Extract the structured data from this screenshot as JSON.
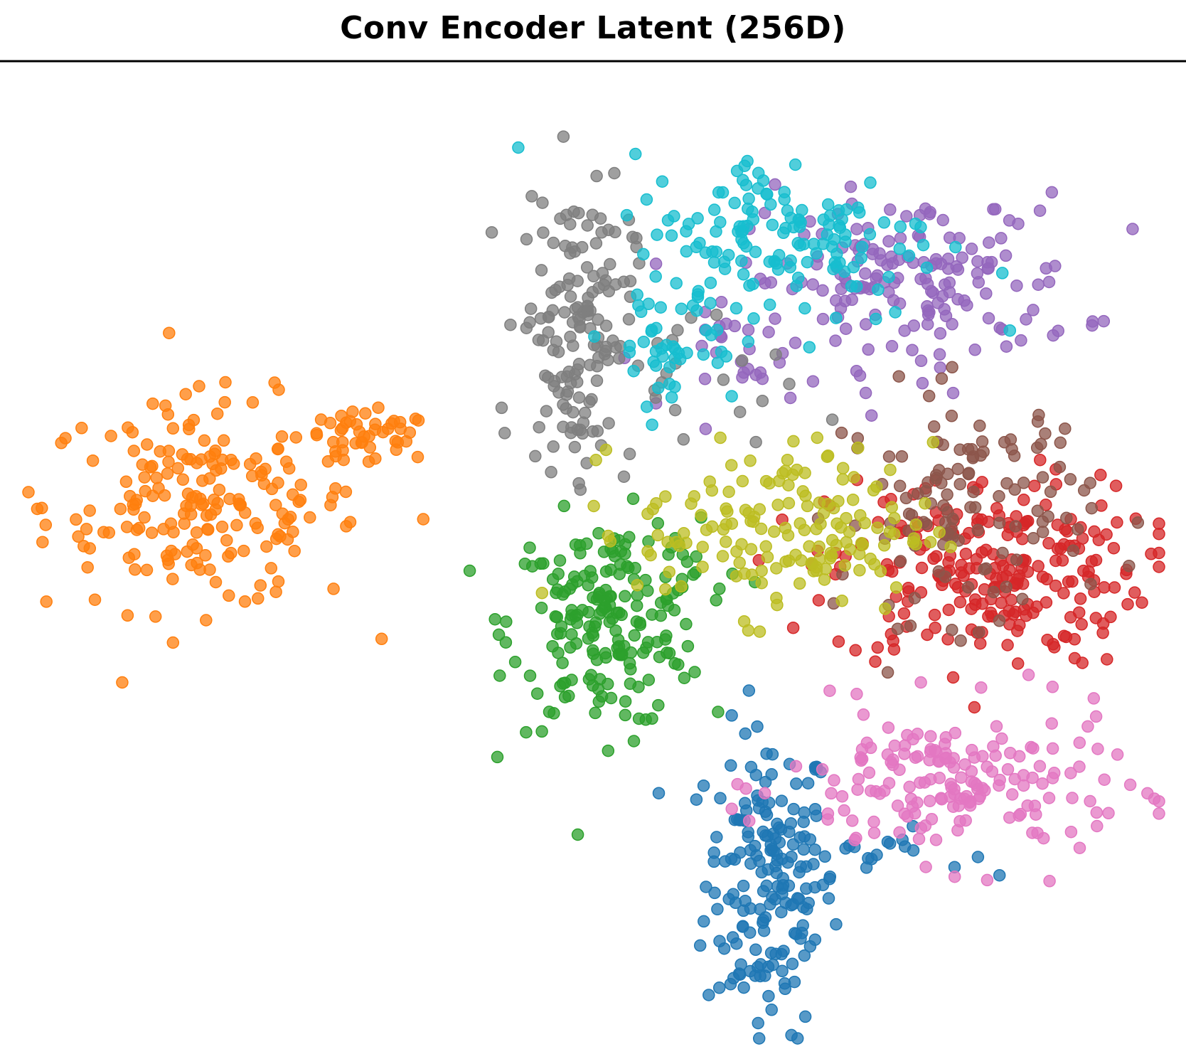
{
  "chart_data": {
    "type": "scatter",
    "title": "Conv Encoder Latent (256D)",
    "xlabel": "",
    "ylabel": "",
    "axes_visible": false,
    "grid": false,
    "legend": "none",
    "xlim": [
      0,
      100
    ],
    "ylim": [
      0,
      100
    ],
    "marker_alpha": 0.75,
    "series": [
      {
        "color": "#1f77b4",
        "clusters": [
          {
            "cx": 65.5,
            "cy": 16.5,
            "sx": 2.8,
            "sy": 8.0,
            "n": 180
          },
          {
            "cx": 75.0,
            "cy": 19.5,
            "sx": 4.0,
            "sy": 1.2,
            "n": 20
          }
        ]
      },
      {
        "color": "#ff7f0e",
        "clusters": [
          {
            "cx": 15.5,
            "cy": 56.0,
            "sx": 7.0,
            "sy": 5.5,
            "n": 200
          },
          {
            "cx": 30.0,
            "cy": 63.0,
            "sx": 3.0,
            "sy": 1.3,
            "n": 40
          }
        ]
      },
      {
        "color": "#2ca02c",
        "clusters": [
          {
            "cx": 51.0,
            "cy": 43.5,
            "sx": 4.2,
            "sy": 5.5,
            "n": 190
          },
          {
            "cx": 58.0,
            "cy": 50.0,
            "sx": 2.0,
            "sy": 2.0,
            "n": 14
          }
        ]
      },
      {
        "color": "#d62728",
        "clusters": [
          {
            "cx": 85.0,
            "cy": 49.0,
            "sx": 7.0,
            "sy": 5.0,
            "n": 240
          }
        ]
      },
      {
        "color": "#9467bd",
        "clusters": [
          {
            "cx": 78.0,
            "cy": 79.5,
            "sx": 7.5,
            "sy": 4.5,
            "n": 170
          },
          {
            "cx": 64.0,
            "cy": 71.0,
            "sx": 3.0,
            "sy": 2.5,
            "n": 25
          }
        ]
      },
      {
        "color": "#8c564b",
        "clusters": [
          {
            "cx": 83.0,
            "cy": 56.0,
            "sx": 5.5,
            "sy": 6.0,
            "n": 120
          }
        ]
      },
      {
        "color": "#e377c2",
        "clusters": [
          {
            "cx": 82.0,
            "cy": 26.5,
            "sx": 7.5,
            "sy": 4.0,
            "n": 180
          }
        ]
      },
      {
        "color": "#7f7f7f",
        "clusters": [
          {
            "cx": 48.5,
            "cy": 75.0,
            "sx": 2.5,
            "sy": 7.5,
            "n": 150
          },
          {
            "cx": 58.0,
            "cy": 67.0,
            "sx": 5.0,
            "sy": 5.0,
            "n": 20
          }
        ]
      },
      {
        "color": "#bcbd22",
        "clusters": [
          {
            "cx": 67.0,
            "cy": 53.5,
            "sx": 6.5,
            "sy": 4.5,
            "n": 160
          }
        ]
      },
      {
        "color": "#17becf",
        "clusters": [
          {
            "cx": 67.0,
            "cy": 84.0,
            "sx": 7.0,
            "sy": 4.5,
            "n": 150
          },
          {
            "cx": 57.0,
            "cy": 72.5,
            "sx": 3.0,
            "sy": 3.0,
            "n": 40
          }
        ]
      }
    ]
  }
}
